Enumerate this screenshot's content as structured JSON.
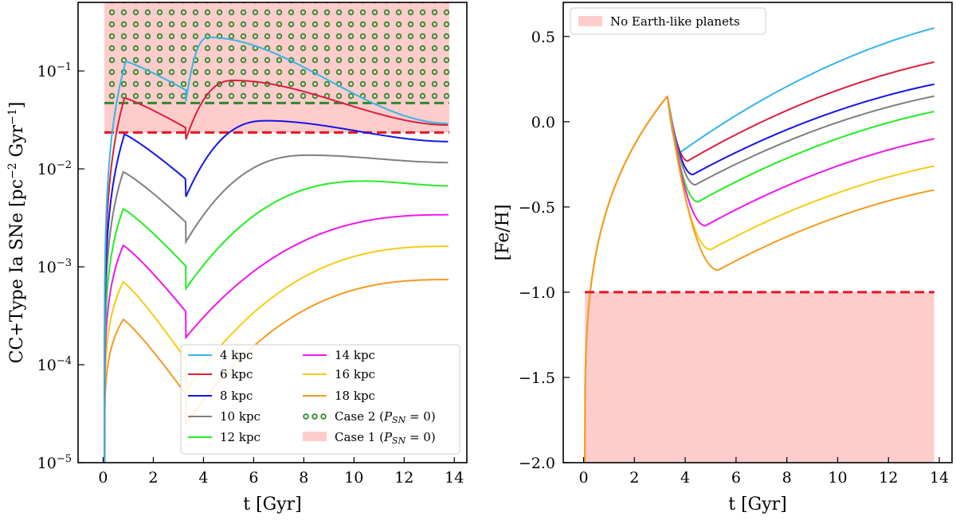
{
  "chart_data": [
    {
      "type": "line",
      "id": "left-panel",
      "xlabel": "t [Gyr]",
      "ylabel": "CC+Type Ia SNe [pc",
      "ylabel_sup1": "−2",
      "ylabel_mid": " Gyr",
      "ylabel_sup2": "−1",
      "ylabel_end": "]",
      "yscale": "log",
      "xlim": [
        -1.0,
        14.5
      ],
      "ylim_log10": [
        -5,
        -0.3
      ],
      "x_ticks": [
        0,
        2,
        4,
        6,
        8,
        10,
        12,
        14
      ],
      "x_tick_labels": [
        "0",
        "2",
        "4",
        "6",
        "8",
        "10",
        "12",
        "14"
      ],
      "y_ticks_log10": [
        -5,
        -4,
        -3,
        -2,
        -1
      ],
      "y_tick_labels": [
        {
          "base": "10",
          "exp": "−5"
        },
        {
          "base": "10",
          "exp": "−4"
        },
        {
          "base": "10",
          "exp": "−3"
        },
        {
          "base": "10",
          "exp": "−2"
        },
        {
          "base": "10",
          "exp": "−1"
        }
      ],
      "series": [
        {
          "name": "4 kpc",
          "color": "#35b5e6",
          "peak1_t": 0.9,
          "peak1": 0.125,
          "min_t": 3.3,
          "min": 0.049,
          "peak2_t": 4.2,
          "peak2": 0.22,
          "end": 0.029
        },
        {
          "name": "6 kpc",
          "color": "#dc1f3c",
          "peak1_t": 0.85,
          "peak1": 0.053,
          "min_t": 3.3,
          "min": 0.02,
          "peak2_t": 5.2,
          "peak2": 0.08,
          "end": 0.028
        },
        {
          "name": "8 kpc",
          "color": "#1414e6",
          "peak1_t": 0.85,
          "peak1": 0.0225,
          "min_t": 3.3,
          "min": 0.0052,
          "peak2_t": 6.5,
          "peak2": 0.031,
          "end": 0.019
        },
        {
          "name": "10 kpc",
          "color": "#7f7f7f",
          "peak1_t": 0.8,
          "peak1": 0.0093,
          "min_t": 3.3,
          "min": 0.0018,
          "peak2_t": 8.2,
          "peak2": 0.0138,
          "end": 0.0116
        },
        {
          "name": "12 kpc",
          "color": "#22ee22",
          "peak1_t": 0.8,
          "peak1": 0.0039,
          "min_t": 3.3,
          "min": 0.0006,
          "peak2_t": 10.5,
          "peak2": 0.0075,
          "end": 0.0067
        },
        {
          "name": "14 kpc",
          "color": "#ee17ee",
          "peak1_t": 0.8,
          "peak1": 0.00165,
          "min_t": 3.3,
          "min": 0.00019,
          "peak2_t": 13.8,
          "peak2": 0.0034,
          "end": 0.0034
        },
        {
          "name": "16 kpc",
          "color": "#f5cc15",
          "peak1_t": 0.8,
          "peak1": 0.0007,
          "min_t": 3.3,
          "min": 5.5e-05,
          "peak2_t": 13.8,
          "peak2": 0.00162,
          "end": 0.00162
        },
        {
          "name": "18 kpc",
          "color": "#f59a1f",
          "peak1_t": 0.8,
          "peak1": 0.00029,
          "min_t": 3.3,
          "min": 2.5e-05,
          "peak2_t": 13.8,
          "peak2": 0.00074,
          "end": 0.00074
        }
      ],
      "threshold_lines": [
        {
          "name": "case1-threshold",
          "y": 0.0235,
          "color": "#e8141e",
          "x_range": [
            0.05,
            13.8
          ]
        },
        {
          "name": "case2-threshold",
          "y": 0.047,
          "color": "#2b8a2b",
          "x_range": [
            0.05,
            13.8
          ]
        }
      ],
      "regions": [
        {
          "name": "case1-region",
          "x_range": [
            0.05,
            13.8
          ],
          "y_range": [
            0.0235,
            0.5
          ],
          "color": "#ffcccc"
        },
        {
          "name": "case2-region",
          "x_range": [
            0.05,
            13.8
          ],
          "y_range": [
            0.047,
            0.5
          ],
          "color": "#2b8a2b",
          "pattern": "circles"
        }
      ],
      "legend": {
        "placement": "bottom-center",
        "entries": [
          {
            "label": "4 kpc",
            "kind": "line",
            "color": "#35b5e6"
          },
          {
            "label": "6 kpc",
            "kind": "line",
            "color": "#dc1f3c"
          },
          {
            "label": "8 kpc",
            "kind": "line",
            "color": "#1414e6"
          },
          {
            "label": "10 kpc",
            "kind": "line",
            "color": "#7f7f7f"
          },
          {
            "label": "12 kpc",
            "kind": "line",
            "color": "#22ee22"
          },
          {
            "label": "14 kpc",
            "kind": "line",
            "color": "#ee17ee"
          },
          {
            "label": "16 kpc",
            "kind": "line",
            "color": "#f5cc15"
          },
          {
            "label": "18 kpc",
            "kind": "line",
            "color": "#f59a1f"
          },
          {
            "label": "Case 2 (",
            "math": "P",
            "sub": "SN",
            "tail": " = 0)",
            "kind": "circles",
            "color": "#2b8a2b"
          },
          {
            "label": "Case 1 (",
            "math": "P",
            "sub": "SN",
            "tail": " = 0)",
            "kind": "patch",
            "color": "#ffcccc"
          }
        ]
      }
    },
    {
      "type": "line",
      "id": "right-panel",
      "xlabel": "t [Gyr]",
      "ylabel": "[Fe/H]",
      "xlim": [
        -0.8,
        14.5
      ],
      "ylim": [
        -2.0,
        0.7
      ],
      "x_ticks": [
        0,
        2,
        4,
        6,
        8,
        10,
        12,
        14
      ],
      "x_tick_labels": [
        "0",
        "2",
        "4",
        "6",
        "8",
        "10",
        "12",
        "14"
      ],
      "y_ticks": [
        -2.0,
        -1.5,
        -1.0,
        -0.5,
        0.0,
        0.5
      ],
      "y_tick_labels": [
        "−2.0",
        "−1.5",
        "−1.0",
        "−0.5",
        "0.0",
        "0.5"
      ],
      "rise": {
        "t_start": 0.05,
        "y_start": -2.0,
        "t_peak": 3.3,
        "y_peak": 0.15,
        "color": "#f59a1f"
      },
      "series": [
        {
          "name": "4 kpc",
          "color": "#35b5e6",
          "min_t": 3.8,
          "min": -0.18,
          "end": 0.55
        },
        {
          "name": "6 kpc",
          "color": "#dc1f3c",
          "min_t": 4.1,
          "min": -0.23,
          "end": 0.35
        },
        {
          "name": "8 kpc",
          "color": "#1414e6",
          "min_t": 4.3,
          "min": -0.31,
          "end": 0.22
        },
        {
          "name": "10 kpc",
          "color": "#7f7f7f",
          "min_t": 4.4,
          "min": -0.37,
          "end": 0.15
        },
        {
          "name": "12 kpc",
          "color": "#22ee22",
          "min_t": 4.5,
          "min": -0.47,
          "end": 0.06
        },
        {
          "name": "14 kpc",
          "color": "#ee17ee",
          "min_t": 4.8,
          "min": -0.61,
          "end": -0.1
        },
        {
          "name": "16 kpc",
          "color": "#f5cc15",
          "min_t": 5.0,
          "min": -0.75,
          "end": -0.26
        },
        {
          "name": "18 kpc",
          "color": "#f59a1f",
          "min_t": 5.3,
          "min": -0.87,
          "end": -0.4
        }
      ],
      "threshold_lines": [
        {
          "name": "metallicity-threshold",
          "y": -1.0,
          "color": "#e8141e",
          "x_range": [
            0.05,
            13.8
          ]
        }
      ],
      "regions": [
        {
          "name": "no-earth-region",
          "x_range": [
            0.05,
            13.8
          ],
          "y_range": [
            -2.0,
            -1.0
          ],
          "color": "#ffcccc"
        }
      ],
      "legend": {
        "placement": "top-left",
        "entries": [
          {
            "label": "No Earth-like planets",
            "kind": "patch",
            "color": "#ffcccc"
          }
        ]
      }
    }
  ]
}
